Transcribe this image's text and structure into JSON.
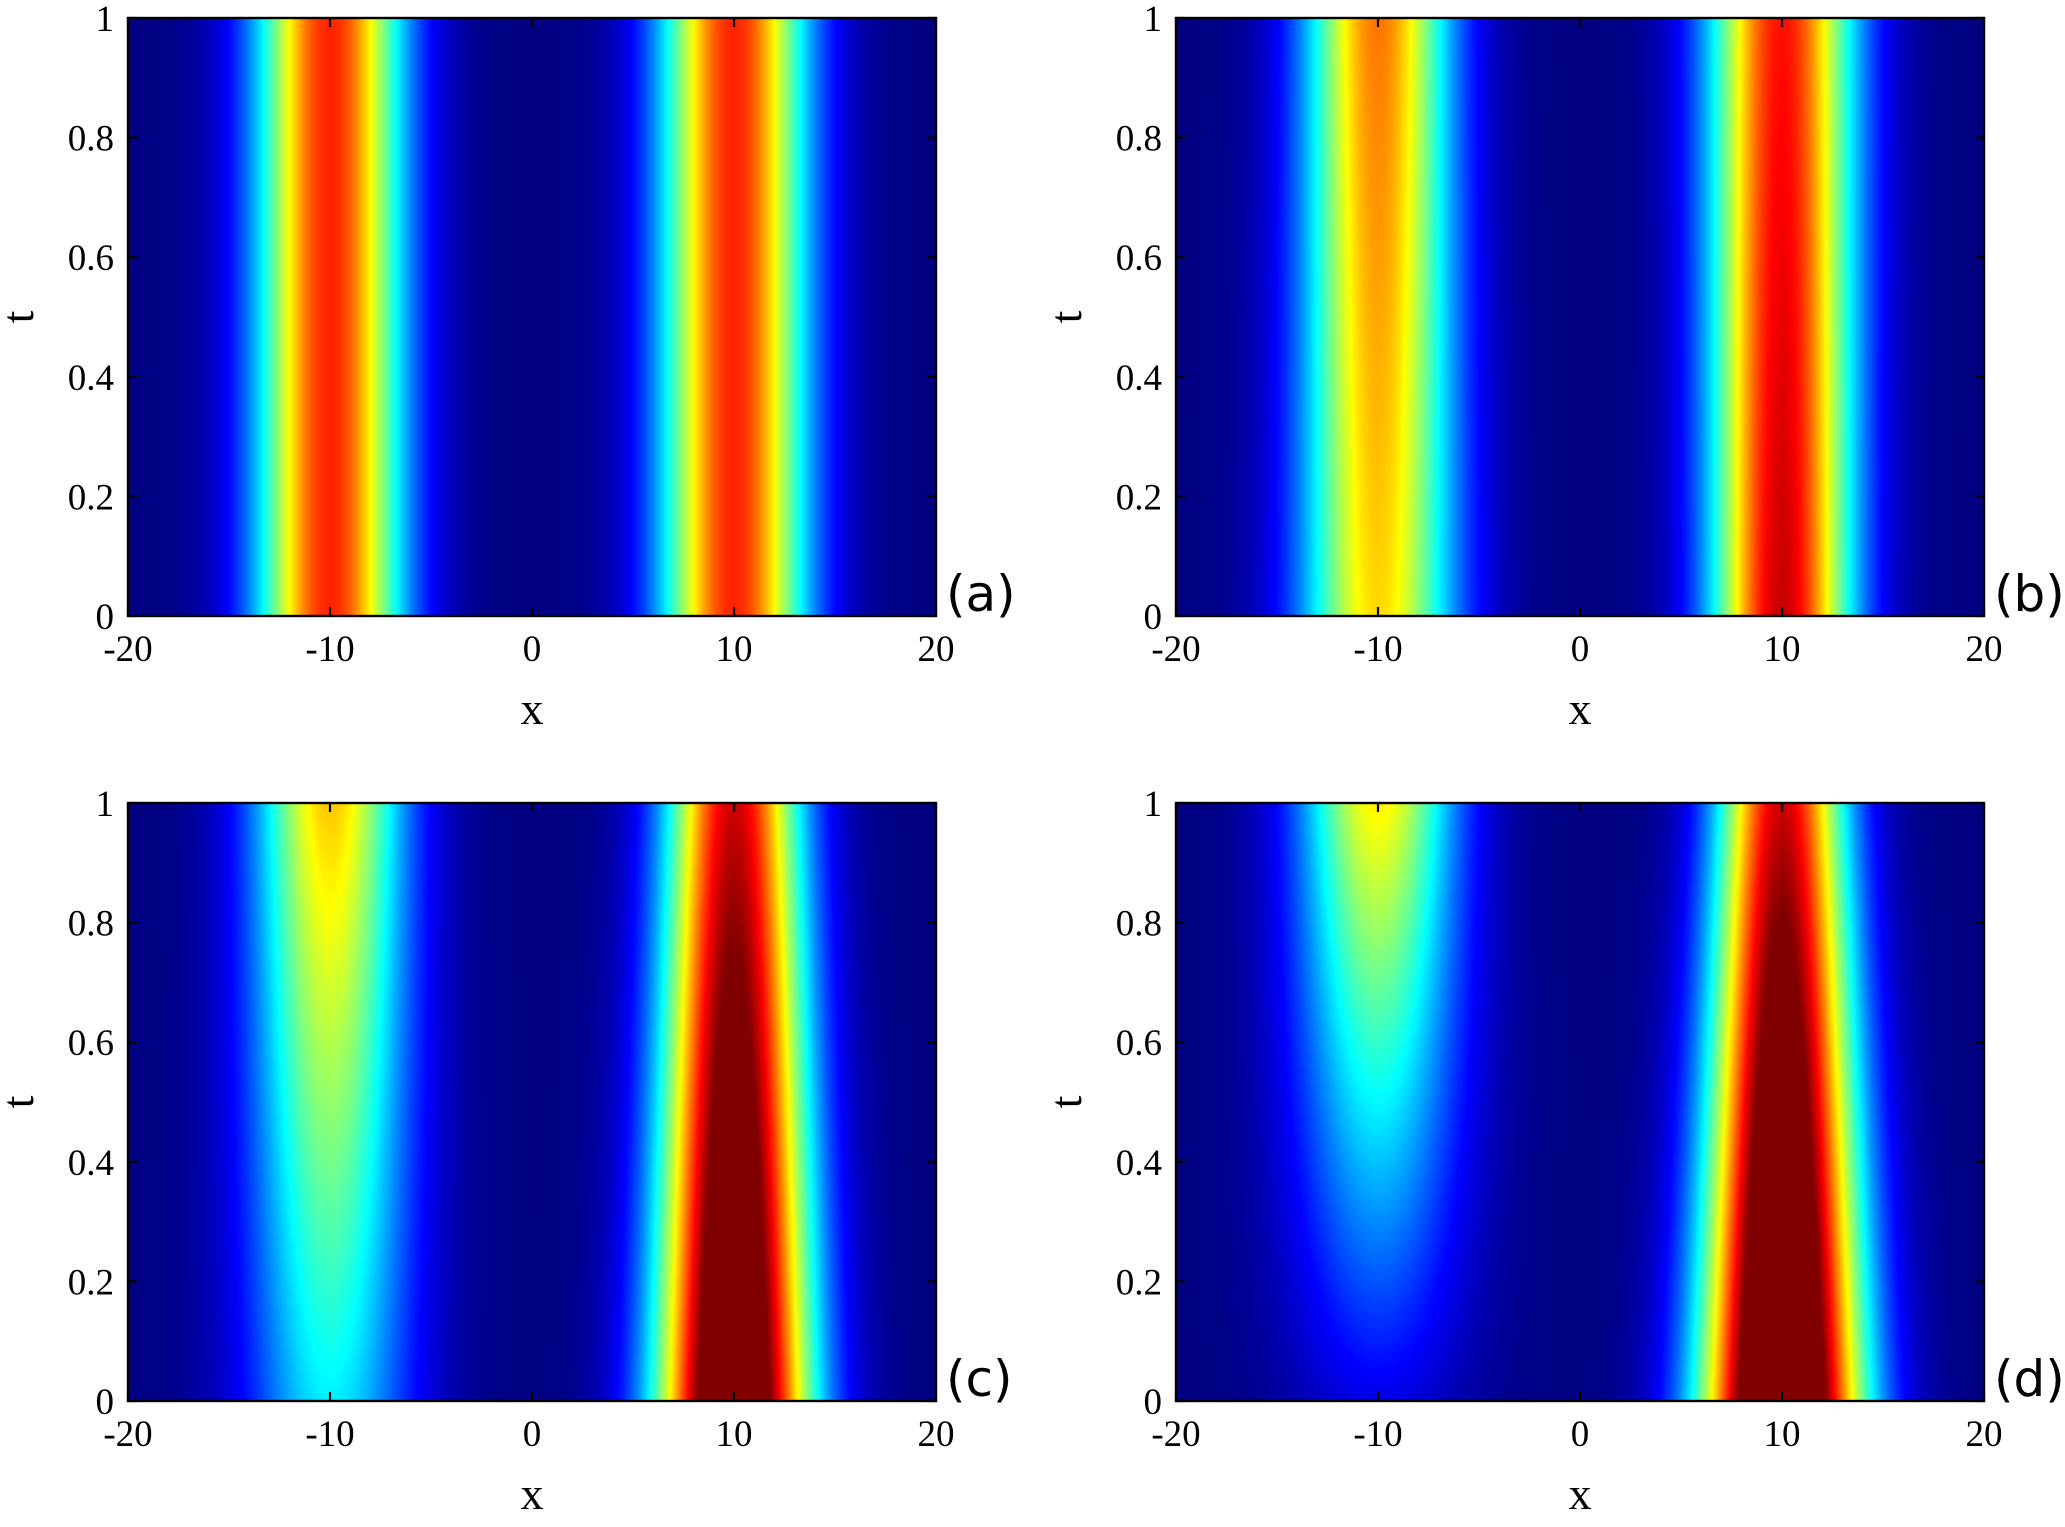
{
  "chart_data": [
    {
      "type": "heatmap",
      "panel_label": "(a)",
      "xlabel": "x",
      "ylabel": "t",
      "xlim": [
        -20,
        20
      ],
      "ylim": [
        0,
        1
      ],
      "xticks": [
        "-20",
        "-10",
        "0",
        "10",
        "20"
      ],
      "yticks": [
        "0",
        "0.2",
        "0.4",
        "0.6",
        "0.8",
        "1"
      ],
      "colormap": "jet",
      "peaks": [
        {
          "center_x": -10,
          "width": 2.6,
          "intensity_t0": 0.84,
          "intensity_t1": 0.84,
          "width_t0": 2.6,
          "width_t1": 2.6
        },
        {
          "center_x": 10,
          "width": 2.6,
          "intensity_t0": 0.84,
          "intensity_t1": 0.84,
          "width_t0": 2.6,
          "width_t1": 2.6
        }
      ]
    },
    {
      "type": "heatmap",
      "panel_label": "(b)",
      "xlabel": "x",
      "ylabel": "t",
      "xlim": [
        -20,
        20
      ],
      "ylim": [
        0,
        1
      ],
      "xticks": [
        "-20",
        "-10",
        "0",
        "10",
        "20"
      ],
      "yticks": [
        "0",
        "0.2",
        "0.4",
        "0.6",
        "0.8",
        "1"
      ],
      "colormap": "jet",
      "peaks": [
        {
          "center_x": -10,
          "intensity_t0": 0.66,
          "intensity_t1": 0.76,
          "width_t0": 2.8,
          "width_t1": 2.6
        },
        {
          "center_x": 10,
          "intensity_t0": 0.93,
          "intensity_t1": 0.86,
          "width_t0": 2.5,
          "width_t1": 2.6
        }
      ]
    },
    {
      "type": "heatmap",
      "panel_label": "(c)",
      "xlabel": "x",
      "ylabel": "t",
      "xlim": [
        -20,
        20
      ],
      "ylim": [
        0,
        1
      ],
      "xticks": [
        "-20",
        "-10",
        "0",
        "10",
        "20"
      ],
      "yticks": [
        "0",
        "0.2",
        "0.4",
        "0.6",
        "0.8",
        "1"
      ],
      "colormap": "jet",
      "peaks": [
        {
          "center_x": -10,
          "intensity_t0": 0.36,
          "intensity_t1": 0.68,
          "width_t0": 3.0,
          "width_t1": 2.7
        },
        {
          "center_x": 10,
          "intensity_t0": 1.25,
          "intensity_t1": 0.92,
          "width_t0": 2.7,
          "width_t1": 2.4
        }
      ]
    },
    {
      "type": "heatmap",
      "panel_label": "(d)",
      "xlabel": "x",
      "ylabel": "t",
      "xlim": [
        -20,
        20
      ],
      "ylim": [
        0,
        1
      ],
      "xticks": [
        "-20",
        "-10",
        "0",
        "10",
        "20"
      ],
      "yticks": [
        "0",
        "0.2",
        "0.4",
        "0.6",
        "0.8",
        "1"
      ],
      "colormap": "jet",
      "peaks": [
        {
          "center_x": -10,
          "intensity_t0": 0.1,
          "intensity_t1": 0.64,
          "width_t0": 3.2,
          "width_t1": 2.8
        },
        {
          "center_x": 10,
          "intensity_t0": 1.35,
          "intensity_t1": 0.92,
          "width_t0": 2.8,
          "width_t1": 2.3
        }
      ]
    }
  ]
}
